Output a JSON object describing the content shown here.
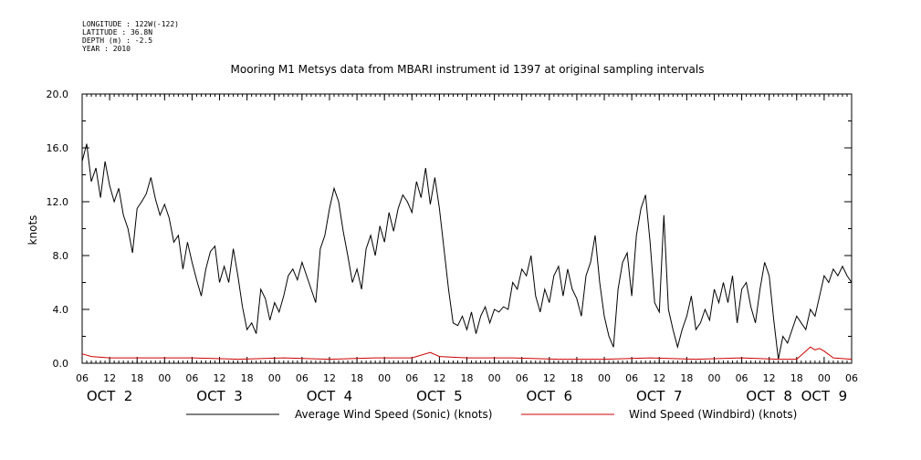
{
  "metadata": [
    "LONGITUDE : 122W(-122)",
    "LATITUDE : 36.8N",
    "DEPTH (m) : -2.5",
    "YEAR : 2010"
  ],
  "chart_data": {
    "type": "line",
    "title": "Mooring M1 Metsys data from MBARI instrument id 1397 at original sampling intervals",
    "ylabel": "knots",
    "xlabel": "",
    "x_start_hours": 6,
    "x_end_hours": 174,
    "ylim": [
      0,
      20
    ],
    "y_ticks": [
      0.0,
      4.0,
      8.0,
      12.0,
      16.0,
      20.0
    ],
    "y_tick_labels": [
      "0.0",
      "4.0",
      "8.0",
      "12.0",
      "16.0",
      "20.0"
    ],
    "x_hour_tick_labels": [
      "06",
      "12",
      "18",
      "00",
      "06",
      "12",
      "18",
      "00",
      "06",
      "12",
      "18",
      "00",
      "06",
      "12",
      "18",
      "00",
      "06",
      "12",
      "18",
      "00",
      "06",
      "12",
      "18",
      "00",
      "06",
      "12",
      "18",
      "00",
      "06"
    ],
    "x_day_labels": [
      {
        "label": "OCT  2",
        "hour": 12
      },
      {
        "label": "OCT  3",
        "hour": 36
      },
      {
        "label": "OCT  4",
        "hour": 60
      },
      {
        "label": "OCT  5",
        "hour": 84
      },
      {
        "label": "OCT  6",
        "hour": 108
      },
      {
        "label": "OCT  7",
        "hour": 132
      },
      {
        "label": "OCT  8",
        "hour": 156
      },
      {
        "label": "OCT  9",
        "hour": 168
      }
    ],
    "grid": false,
    "legend_position": "bottom",
    "series": [
      {
        "name": "Average Wind Speed (Sonic) (knots)",
        "color": "#000000",
        "points": [
          [
            6,
            15.0
          ],
          [
            7,
            16.3
          ],
          [
            8,
            13.5
          ],
          [
            9,
            14.5
          ],
          [
            10,
            12.3
          ],
          [
            11,
            15.0
          ],
          [
            12,
            13.2
          ],
          [
            13,
            12.0
          ],
          [
            14,
            13.0
          ],
          [
            15,
            11.0
          ],
          [
            16,
            10.0
          ],
          [
            17,
            8.2
          ],
          [
            18,
            11.5
          ],
          [
            19,
            12.0
          ],
          [
            20,
            12.6
          ],
          [
            21,
            13.8
          ],
          [
            22,
            12.2
          ],
          [
            23,
            11.0
          ],
          [
            24,
            11.8
          ],
          [
            25,
            10.8
          ],
          [
            26,
            9.0
          ],
          [
            27,
            9.5
          ],
          [
            28,
            7.0
          ],
          [
            29,
            9.0
          ],
          [
            30,
            7.5
          ],
          [
            31,
            6.2
          ],
          [
            32,
            5.0
          ],
          [
            33,
            7.0
          ],
          [
            34,
            8.3
          ],
          [
            35,
            8.7
          ],
          [
            36,
            6.0
          ],
          [
            37,
            7.2
          ],
          [
            38,
            6.0
          ],
          [
            39,
            8.5
          ],
          [
            40,
            6.5
          ],
          [
            41,
            4.2
          ],
          [
            42,
            2.5
          ],
          [
            43,
            3.0
          ],
          [
            44,
            2.2
          ],
          [
            45,
            5.5
          ],
          [
            46,
            4.8
          ],
          [
            47,
            3.2
          ],
          [
            48,
            4.5
          ],
          [
            49,
            3.8
          ],
          [
            50,
            5.0
          ],
          [
            51,
            6.5
          ],
          [
            52,
            7.0
          ],
          [
            53,
            6.2
          ],
          [
            54,
            7.5
          ],
          [
            55,
            6.5
          ],
          [
            56,
            5.5
          ],
          [
            57,
            4.5
          ],
          [
            58,
            8.5
          ],
          [
            59,
            9.5
          ],
          [
            60,
            11.5
          ],
          [
            61,
            13.0
          ],
          [
            62,
            12.0
          ],
          [
            63,
            9.8
          ],
          [
            64,
            8.0
          ],
          [
            65,
            6.0
          ],
          [
            66,
            7.0
          ],
          [
            67,
            5.5
          ],
          [
            68,
            8.5
          ],
          [
            69,
            9.5
          ],
          [
            70,
            8.0
          ],
          [
            71,
            10.2
          ],
          [
            72,
            9.0
          ],
          [
            73,
            11.2
          ],
          [
            74,
            9.8
          ],
          [
            75,
            11.5
          ],
          [
            76,
            12.5
          ],
          [
            77,
            12.0
          ],
          [
            78,
            11.2
          ],
          [
            79,
            13.5
          ],
          [
            80,
            12.3
          ],
          [
            81,
            14.5
          ],
          [
            82,
            11.8
          ],
          [
            83,
            13.8
          ],
          [
            84,
            11.5
          ],
          [
            85,
            8.5
          ],
          [
            86,
            5.5
          ],
          [
            87,
            3.0
          ],
          [
            88,
            2.8
          ],
          [
            89,
            3.5
          ],
          [
            90,
            2.5
          ],
          [
            91,
            3.8
          ],
          [
            92,
            2.2
          ],
          [
            93,
            3.5
          ],
          [
            94,
            4.2
          ],
          [
            95,
            3.0
          ],
          [
            96,
            4.0
          ],
          [
            97,
            3.8
          ],
          [
            98,
            4.2
          ],
          [
            99,
            4.0
          ],
          [
            100,
            6.0
          ],
          [
            101,
            5.5
          ],
          [
            102,
            7.0
          ],
          [
            103,
            6.5
          ],
          [
            104,
            8.0
          ],
          [
            105,
            5.0
          ],
          [
            106,
            3.8
          ],
          [
            107,
            5.5
          ],
          [
            108,
            4.5
          ],
          [
            109,
            6.5
          ],
          [
            110,
            7.2
          ],
          [
            111,
            5.0
          ],
          [
            112,
            7.0
          ],
          [
            113,
            5.5
          ],
          [
            114,
            4.8
          ],
          [
            115,
            3.5
          ],
          [
            116,
            6.5
          ],
          [
            117,
            7.5
          ],
          [
            118,
            9.5
          ],
          [
            119,
            6.0
          ],
          [
            120,
            3.5
          ],
          [
            121,
            2.0
          ],
          [
            122,
            1.2
          ],
          [
            123,
            5.5
          ],
          [
            124,
            7.5
          ],
          [
            125,
            8.2
          ],
          [
            126,
            5.0
          ],
          [
            127,
            9.5
          ],
          [
            128,
            11.5
          ],
          [
            129,
            12.5
          ],
          [
            130,
            9.0
          ],
          [
            131,
            4.5
          ],
          [
            132,
            3.8
          ],
          [
            133,
            11.0
          ],
          [
            134,
            4.0
          ],
          [
            135,
            2.5
          ],
          [
            136,
            1.2
          ],
          [
            137,
            2.5
          ],
          [
            138,
            3.5
          ],
          [
            139,
            5.0
          ],
          [
            140,
            2.5
          ],
          [
            141,
            3.0
          ],
          [
            142,
            4.0
          ],
          [
            143,
            3.2
          ],
          [
            144,
            5.5
          ],
          [
            145,
            4.5
          ],
          [
            146,
            6.0
          ],
          [
            147,
            4.5
          ],
          [
            148,
            6.5
          ],
          [
            149,
            3.0
          ],
          [
            150,
            5.5
          ],
          [
            151,
            6.0
          ],
          [
            152,
            4.2
          ],
          [
            153,
            3.0
          ],
          [
            154,
            5.5
          ],
          [
            155,
            7.5
          ],
          [
            156,
            6.5
          ],
          [
            157,
            3.2
          ],
          [
            158,
            0.3
          ],
          [
            159,
            2.0
          ],
          [
            160,
            1.5
          ],
          [
            161,
            2.5
          ],
          [
            162,
            3.5
          ],
          [
            163,
            3.0
          ],
          [
            164,
            2.5
          ],
          [
            165,
            4.0
          ],
          [
            166,
            3.5
          ],
          [
            167,
            5.0
          ],
          [
            168,
            6.5
          ],
          [
            169,
            6.0
          ],
          [
            170,
            7.0
          ],
          [
            171,
            6.5
          ],
          [
            172,
            7.2
          ],
          [
            173,
            6.5
          ],
          [
            174,
            6.0
          ]
        ]
      },
      {
        "name": "Wind Speed (Windbird) (knots)",
        "color": "#cc0000",
        "points": [
          [
            6,
            0.7
          ],
          [
            8,
            0.5
          ],
          [
            12,
            0.4
          ],
          [
            20,
            0.4
          ],
          [
            30,
            0.4
          ],
          [
            40,
            0.3
          ],
          [
            50,
            0.4
          ],
          [
            60,
            0.3
          ],
          [
            70,
            0.4
          ],
          [
            78,
            0.4
          ],
          [
            82,
            0.8
          ],
          [
            84,
            0.5
          ],
          [
            90,
            0.4
          ],
          [
            100,
            0.4
          ],
          [
            110,
            0.3
          ],
          [
            120,
            0.3
          ],
          [
            130,
            0.4
          ],
          [
            140,
            0.3
          ],
          [
            150,
            0.4
          ],
          [
            158,
            0.3
          ],
          [
            162,
            0.3
          ],
          [
            164,
            0.9
          ],
          [
            165,
            1.2
          ],
          [
            166,
            1.0
          ],
          [
            167,
            1.1
          ],
          [
            168,
            0.9
          ],
          [
            170,
            0.4
          ],
          [
            174,
            0.3
          ]
        ]
      }
    ]
  }
}
